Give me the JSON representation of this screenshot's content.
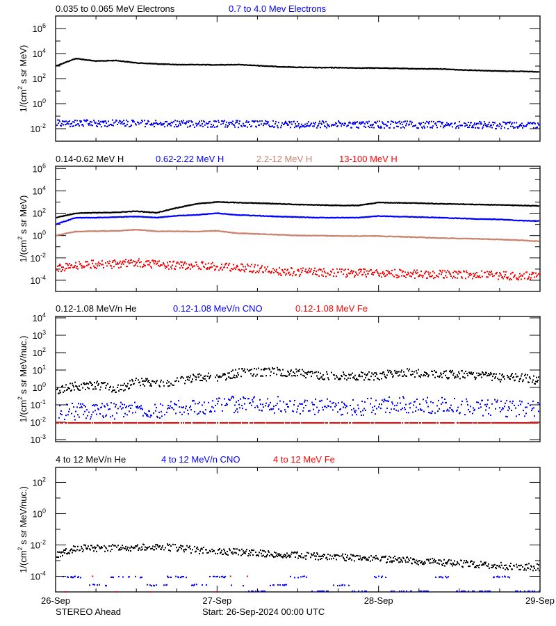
{
  "footer": {
    "left": "STEREO Ahead",
    "center": "Start: 26-Sep-2024 00:00 UTC"
  },
  "x_tick_labels": [
    "26-Sep",
    "27-Sep",
    "28-Sep",
    "29-Sep"
  ],
  "chart_data": [
    {
      "type": "scatter",
      "yscale": "log",
      "ylabel": "1/(cm² s sr MeV)",
      "ylabel_base": "1/(cm",
      "ylabel_sup": "2",
      "ylabel_rest": " s sr MeV)",
      "ylim": [
        0.001,
        10000000
      ],
      "ytick_exponents": [
        -2,
        0,
        2,
        4,
        6
      ],
      "xlim": [
        "2024-09-26T00:00",
        "2024-09-29T00:00"
      ],
      "time": [
        "2024-09-26T00:00",
        "2024-09-26T03:00",
        "2024-09-26T06:00",
        "2024-09-26T09:00",
        "2024-09-26T12:00",
        "2024-09-26T15:00",
        "2024-09-26T18:00",
        "2024-09-26T21:00",
        "2024-09-27T00:00",
        "2024-09-27T03:00",
        "2024-09-27T06:00",
        "2024-09-27T09:00",
        "2024-09-27T12:00",
        "2024-09-27T15:00",
        "2024-09-27T18:00",
        "2024-09-27T21:00",
        "2024-09-28T00:00",
        "2024-09-28T03:00",
        "2024-09-28T06:00",
        "2024-09-28T09:00",
        "2024-09-28T12:00",
        "2024-09-28T15:00",
        "2024-09-28T18:00",
        "2024-09-28T21:00",
        "2024-09-29T00:00"
      ],
      "series": [
        {
          "name": "0.035 to 0.065 MeV Electrons",
          "color": "#000000",
          "style": "line",
          "values": [
            1000,
            4000,
            2500,
            2800,
            1800,
            1500,
            1300,
            1300,
            1250,
            1300,
            1100,
            900,
            800,
            750,
            750,
            700,
            700,
            650,
            600,
            600,
            500,
            450,
            400,
            380,
            350
          ]
        },
        {
          "name": "0.7 to 4.0 Mev Electrons",
          "color": "#0000ff",
          "style": "scatter",
          "values": [
            0.03,
            0.03,
            0.03,
            0.03,
            0.03,
            0.028,
            0.028,
            0.027,
            0.027,
            0.026,
            0.026,
            0.026,
            0.025,
            0.025,
            0.025,
            0.024,
            0.024,
            0.024,
            0.023,
            0.023,
            0.022,
            0.022,
            0.021,
            0.021,
            0.02
          ]
        }
      ]
    },
    {
      "type": "scatter",
      "yscale": "log",
      "ylabel": "1/(cm² s sr MeV)",
      "ylabel_base": "1/(cm",
      "ylabel_sup": "2",
      "ylabel_rest": " s sr MeV)",
      "ylim": [
        1e-05,
        1600000
      ],
      "ytick_exponents": [
        -4,
        -2,
        0,
        2,
        4,
        6
      ],
      "xlim": [
        "2024-09-26T00:00",
        "2024-09-29T00:00"
      ],
      "time": [
        "2024-09-26T00:00",
        "2024-09-26T03:00",
        "2024-09-26T06:00",
        "2024-09-26T09:00",
        "2024-09-26T12:00",
        "2024-09-26T15:00",
        "2024-09-26T18:00",
        "2024-09-26T21:00",
        "2024-09-27T00:00",
        "2024-09-27T03:00",
        "2024-09-27T06:00",
        "2024-09-27T09:00",
        "2024-09-27T12:00",
        "2024-09-27T15:00",
        "2024-09-27T18:00",
        "2024-09-27T21:00",
        "2024-09-28T00:00",
        "2024-09-28T03:00",
        "2024-09-28T06:00",
        "2024-09-28T09:00",
        "2024-09-28T12:00",
        "2024-09-28T15:00",
        "2024-09-28T18:00",
        "2024-09-28T21:00",
        "2024-09-29T00:00"
      ],
      "series": [
        {
          "name": "0.14-0.62 MeV H",
          "color": "#000000",
          "style": "line",
          "values": [
            40,
            100,
            110,
            120,
            150,
            110,
            300,
            700,
            1000,
            900,
            800,
            700,
            600,
            550,
            500,
            500,
            900,
            850,
            800,
            700,
            650,
            600,
            550,
            500,
            450
          ]
        },
        {
          "name": "0.62-2.22 MeV H",
          "color": "#0000ff",
          "style": "line",
          "values": [
            10,
            40,
            40,
            45,
            50,
            40,
            60,
            70,
            100,
            70,
            60,
            50,
            45,
            40,
            40,
            40,
            55,
            50,
            45,
            40,
            35,
            30,
            28,
            22,
            20
          ]
        },
        {
          "name": "2.2-12 MeV H",
          "color": "#c8826e",
          "style": "line",
          "values": [
            1.0,
            2.3,
            2.5,
            2.6,
            3.4,
            2.4,
            2.4,
            2.3,
            2.7,
            1.6,
            1.4,
            1.2,
            1.0,
            1.0,
            0.9,
            0.9,
            0.9,
            0.8,
            0.7,
            0.6,
            0.55,
            0.5,
            0.45,
            0.38,
            0.3
          ]
        },
        {
          "name": "13-100 MeV H",
          "color": "#ff0000",
          "style": "scatter",
          "values": [
            0.0013,
            0.0028,
            0.003,
            0.0032,
            0.004,
            0.003,
            0.0025,
            0.0022,
            0.002,
            0.0015,
            0.0012,
            0.0008,
            0.0006,
            0.0006,
            0.0005,
            0.0005,
            0.0005,
            0.00045,
            0.0004,
            0.0004,
            0.00035,
            0.00035,
            0.0003,
            0.0003,
            0.0003
          ]
        }
      ]
    },
    {
      "type": "scatter",
      "yscale": "log",
      "ylabel": "1/(cm² s sr MeV/nuc.)",
      "ylabel_base": "1/(cm",
      "ylabel_sup": "2",
      "ylabel_rest": " s sr MeV/nuc.)",
      "ylim": [
        0.00076,
        12000
      ],
      "ytick_exponents": [
        -3,
        -2,
        -1,
        0,
        1,
        2,
        3,
        4
      ],
      "xlim": [
        "2024-09-26T00:00",
        "2024-09-29T00:00"
      ],
      "time": [
        "2024-09-26T00:00",
        "2024-09-26T03:00",
        "2024-09-26T06:00",
        "2024-09-26T09:00",
        "2024-09-26T12:00",
        "2024-09-26T15:00",
        "2024-09-26T18:00",
        "2024-09-26T21:00",
        "2024-09-27T00:00",
        "2024-09-27T03:00",
        "2024-09-27T06:00",
        "2024-09-27T09:00",
        "2024-09-27T12:00",
        "2024-09-27T15:00",
        "2024-09-27T18:00",
        "2024-09-27T21:00",
        "2024-09-28T00:00",
        "2024-09-28T03:00",
        "2024-09-28T06:00",
        "2024-09-28T09:00",
        "2024-09-28T12:00",
        "2024-09-28T15:00",
        "2024-09-28T18:00",
        "2024-09-28T21:00",
        "2024-09-29T00:00"
      ],
      "series": [
        {
          "name": "0.12-1.08 MeV/n He",
          "color": "#000000",
          "style": "scatter",
          "values": [
            0.8,
            1.3,
            1.5,
            0.9,
            2.2,
            1.8,
            2.5,
            4.5,
            4.0,
            7.5,
            8.0,
            9.0,
            7.0,
            5.5,
            5.0,
            5.0,
            5.0,
            8.0,
            7.0,
            6.0,
            6.0,
            5.0,
            4.0,
            4.0,
            2.5
          ]
        },
        {
          "name": "0.12-1.08 MeV/n CNO",
          "color": "#0000ff",
          "style": "scatter",
          "values": [
            0.04,
            0.045,
            0.05,
            0.05,
            0.055,
            0.05,
            0.07,
            0.09,
            0.1,
            0.12,
            0.12,
            0.11,
            0.09,
            0.08,
            0.08,
            0.08,
            0.1,
            0.11,
            0.11,
            0.1,
            0.09,
            0.08,
            0.07,
            0.06,
            0.06
          ]
        },
        {
          "name": "0.12-1.08 MeV Fe",
          "color": "#ff0000",
          "style": "scatter",
          "values": [
            0.01,
            0.01,
            0.01,
            0.01,
            0.01,
            0.01,
            0.01,
            0.01,
            0.01,
            0.01,
            0.01,
            0.01,
            0.01,
            0.01,
            0.01,
            0.01,
            0.01,
            0.01,
            0.01,
            0.01,
            0.01,
            0.01,
            0.01,
            0.01,
            0.01
          ]
        }
      ]
    },
    {
      "type": "scatter",
      "yscale": "log",
      "ylabel": "1/(cm² s sr MeV/nuc.)",
      "ylabel_base": "1/(cm",
      "ylabel_sup": "2",
      "ylabel_rest": " s sr MeV/nuc.)",
      "ylim": [
        1e-05,
        900
      ],
      "ytick_exponents": [
        -4,
        -3,
        -2,
        -1,
        0,
        1,
        2
      ],
      "ytick_label_exponents": [
        -4,
        -2,
        0,
        2
      ],
      "xlim": [
        "2024-09-26T00:00",
        "2024-09-29T00:00"
      ],
      "time": [
        "2024-09-26T00:00",
        "2024-09-26T03:00",
        "2024-09-26T06:00",
        "2024-09-26T09:00",
        "2024-09-26T12:00",
        "2024-09-26T15:00",
        "2024-09-26T18:00",
        "2024-09-26T21:00",
        "2024-09-27T00:00",
        "2024-09-27T03:00",
        "2024-09-27T06:00",
        "2024-09-27T09:00",
        "2024-09-27T12:00",
        "2024-09-27T15:00",
        "2024-09-27T18:00",
        "2024-09-27T21:00",
        "2024-09-28T00:00",
        "2024-09-28T03:00",
        "2024-09-28T06:00",
        "2024-09-28T09:00",
        "2024-09-28T12:00",
        "2024-09-28T15:00",
        "2024-09-28T18:00",
        "2024-09-28T21:00",
        "2024-09-29T00:00"
      ],
      "series": [
        {
          "name": "4 to 12 MeV/n He",
          "color": "#000000",
          "style": "scatter",
          "values": [
            0.0024,
            0.0065,
            0.007,
            0.007,
            0.008,
            0.0085,
            0.007,
            0.005,
            0.0045,
            0.004,
            0.0032,
            0.0028,
            0.0025,
            0.002,
            0.0018,
            0.0016,
            0.0014,
            0.0012,
            0.001,
            0.0009,
            0.0007,
            0.0006,
            0.0005,
            0.00045,
            0.0004
          ]
        },
        {
          "name": "4 to 12 MeV/n CNO",
          "color": "#0000ff",
          "style": "sparse",
          "values": [
            0.0001,
            0.0001,
            3e-05,
            0.0001,
            0.0001,
            3e-05,
            0.0001,
            3e-05,
            0.0001,
            3e-05,
            1e-05,
            3e-05,
            0.0001,
            1e-05,
            3e-05,
            1e-05,
            0.0001,
            1e-05,
            1e-05,
            0.0001,
            1e-05,
            1e-05,
            0.0001,
            1e-05,
            1e-05
          ]
        },
        {
          "name": "4 to 12 MeV Fe",
          "color": "#ff0000",
          "style": "points",
          "points": [
            [
              "2024-09-26T01:30",
              1e-05
            ],
            [
              "2024-09-26T05:30",
              0.0001
            ],
            [
              "2024-09-26T09:00",
              1e-05
            ],
            [
              "2024-09-26T14:00",
              1e-05
            ],
            [
              "2024-09-26T24:00",
              1e-05
            ],
            [
              "2024-09-27T02:00",
              0.0001
            ],
            [
              "2024-09-27T04:30",
              0.0001
            ]
          ]
        }
      ]
    }
  ]
}
